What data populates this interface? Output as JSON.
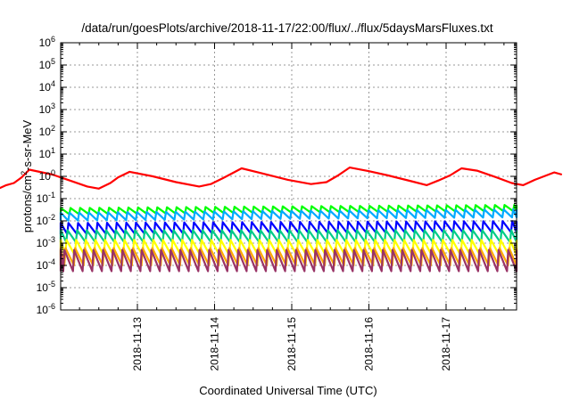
{
  "chart_data": {
    "type": "line",
    "title": "/data/run/goesPlots/archive/2018-11-17/22:00/flux/../flux/5daysMarsFluxes.txt",
    "xlabel": "Coordinated Universal Time (UTC)",
    "ylabel": {
      "base": "protons/cm",
      "sup": "2",
      "rest": "-s-sr-MeV"
    },
    "yscale": "log",
    "ylim": [
      1e-06,
      1000000.0
    ],
    "yticks": [
      {
        "exp": "-6"
      },
      {
        "exp": "-5"
      },
      {
        "exp": "-4"
      },
      {
        "exp": "-3"
      },
      {
        "exp": "-2"
      },
      {
        "exp": "-1"
      },
      {
        "exp": "0"
      },
      {
        "exp": "1"
      },
      {
        "exp": "2"
      },
      {
        "exp": "3"
      },
      {
        "exp": "4"
      },
      {
        "exp": "5"
      },
      {
        "exp": "6"
      }
    ],
    "xlim_days": [
      -2.37,
      3.5
    ],
    "xticks": [
      {
        "label": "2018-11-13",
        "day": 0
      },
      {
        "label": "2018-11-14",
        "day": 1
      },
      {
        "label": "2018-11-15",
        "day": 2
      },
      {
        "label": "2018-11-16",
        "day": 3
      },
      {
        "label": "2018-11-17",
        "day": 4
      }
    ],
    "grid": true,
    "series": [
      {
        "color": "#ff0000",
        "points": [
          [
            -2.37,
            1.5
          ],
          [
            -2.17,
            0.9
          ],
          [
            -1.97,
            0.5
          ],
          [
            -1.8,
            0.28
          ],
          [
            -1.7,
            0.4
          ],
          [
            -1.6,
            0.5
          ],
          [
            -1.5,
            0.9
          ],
          [
            -1.4,
            2
          ],
          [
            -1.1,
            1.2
          ],
          [
            -0.9,
            0.7
          ],
          [
            -0.65,
            0.35
          ],
          [
            -0.5,
            0.28
          ],
          [
            -0.35,
            0.5
          ],
          [
            -0.25,
            0.9
          ],
          [
            -0.1,
            1.6
          ],
          [
            0.2,
            1
          ],
          [
            0.5,
            0.55
          ],
          [
            0.8,
            0.35
          ],
          [
            0.95,
            0.45
          ],
          [
            1.1,
            0.8
          ],
          [
            1.25,
            1.5
          ],
          [
            1.35,
            2.3
          ],
          [
            1.6,
            1.4
          ],
          [
            1.95,
            0.7
          ],
          [
            2.25,
            0.45
          ],
          [
            2.45,
            0.55
          ],
          [
            2.6,
            1.1
          ],
          [
            2.75,
            2.5
          ],
          [
            3,
            1.7
          ],
          [
            3.25,
            1.1
          ],
          [
            3.55,
            0.6
          ],
          [
            3.75,
            0.4
          ],
          [
            3.9,
            0.65
          ],
          [
            4.05,
            1.1
          ],
          [
            4.2,
            2.3
          ],
          [
            4.4,
            1.8
          ],
          [
            4.65,
            0.9
          ],
          [
            4.85,
            0.5
          ],
          [
            5.0,
            0.4
          ],
          [
            5.15,
            0.7
          ],
          [
            5.4,
            1.5
          ],
          [
            5.5,
            1.2
          ]
        ]
      },
      {
        "color": "#00ff00",
        "base": 0.022,
        "amp": 1.9,
        "trend": [
          0.9,
          1.25
        ]
      },
      {
        "color": "#00aaff",
        "base": 0.012,
        "amp": 2.3,
        "trend": [
          0.85,
          1.2
        ]
      },
      {
        "color": "#0000ff",
        "base": 0.0028,
        "amp": 3.2,
        "trend": [
          0.9,
          1.1
        ]
      },
      {
        "color": "#00cc88",
        "base": 0.0011,
        "amp": 3.5,
        "trend": [
          1,
          1
        ]
      },
      {
        "color": "#ffff00",
        "base": 0.00028,
        "amp": 5,
        "trend": [
          1,
          1
        ]
      },
      {
        "color": "#ffaa00",
        "base": 0.0001,
        "amp": 6,
        "trend": [
          1,
          1
        ]
      },
      {
        "color": "#993366",
        "base": 5.5e-05,
        "amp": 9,
        "trend": [
          1,
          1
        ]
      }
    ],
    "sawtooth_period_days": 0.125
  }
}
